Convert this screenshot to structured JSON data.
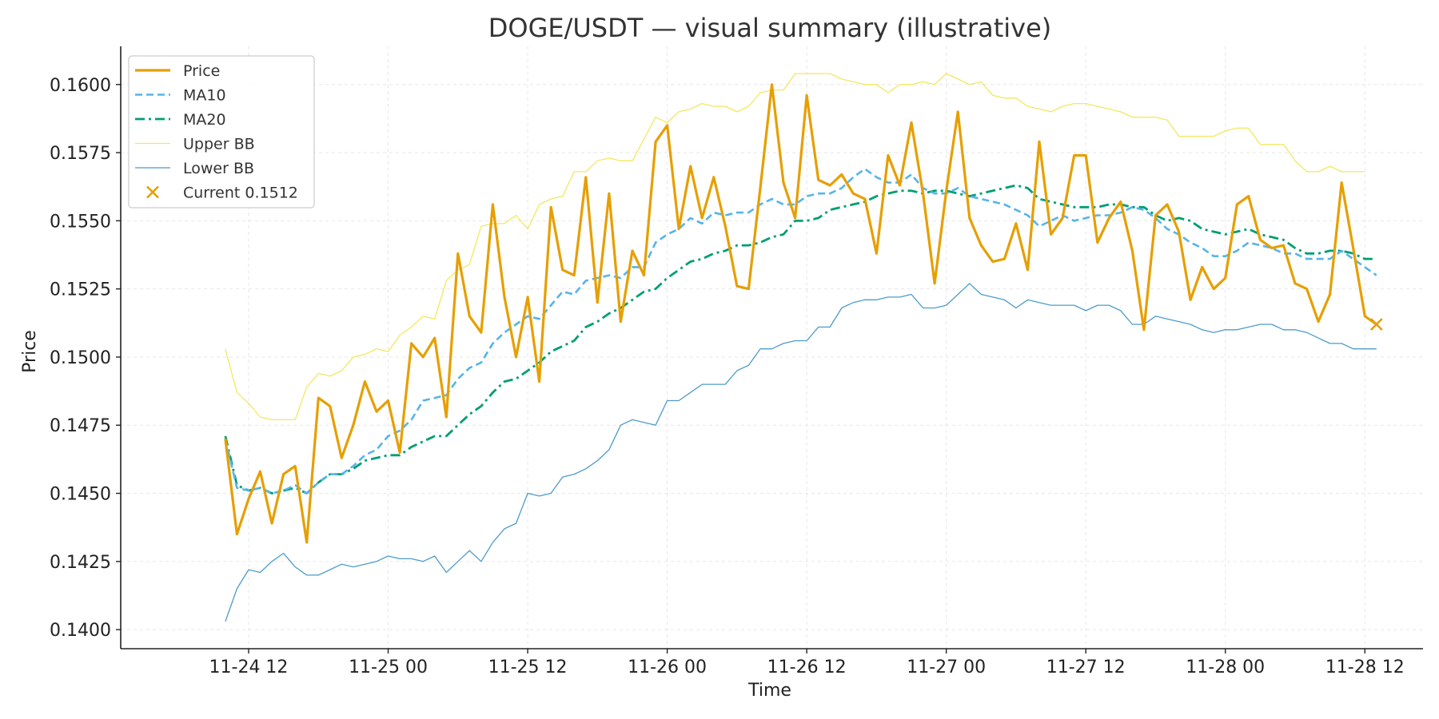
{
  "chart_data": {
    "type": "line",
    "title": "DOGE/USDT — visual summary (illustrative)",
    "xlabel": "Time",
    "ylabel": "Price",
    "xlim": [
      "2024-11-24T01:00",
      "2024-11-28T17:00"
    ],
    "ylim": [
      0.1393,
      0.1614
    ],
    "x_ticks": [
      {
        "label": "11-24 12",
        "value": "2024-11-24T12:00"
      },
      {
        "label": "11-25 00",
        "value": "2024-11-25T00:00"
      },
      {
        "label": "11-25 12",
        "value": "2024-11-25T12:00"
      },
      {
        "label": "11-26 00",
        "value": "2024-11-26T00:00"
      },
      {
        "label": "11-26 12",
        "value": "2024-11-26T12:00"
      },
      {
        "label": "11-27 00",
        "value": "2024-11-27T00:00"
      },
      {
        "label": "11-27 12",
        "value": "2024-11-27T12:00"
      },
      {
        "label": "11-28 00",
        "value": "2024-11-28T00:00"
      },
      {
        "label": "11-28 12",
        "value": "2024-11-28T12:00"
      }
    ],
    "y_ticks": [
      {
        "label": "0.1400",
        "value": 0.14
      },
      {
        "label": "0.1425",
        "value": 0.1425
      },
      {
        "label": "0.1450",
        "value": 0.145
      },
      {
        "label": "0.1475",
        "value": 0.1475
      },
      {
        "label": "0.1500",
        "value": 0.15
      },
      {
        "label": "0.1525",
        "value": 0.1525
      },
      {
        "label": "0.1550",
        "value": 0.155
      },
      {
        "label": "0.1575",
        "value": 0.1575
      },
      {
        "label": "0.1600",
        "value": 0.16
      }
    ],
    "grid": true,
    "legend_position": "top-left",
    "x_start": "2024-11-24T10:00",
    "x_step_hours": 1,
    "series": [
      {
        "name": "Price",
        "color": "#E69F00",
        "style": "solid",
        "values": [
          0.147,
          0.1435,
          0.1448,
          0.1458,
          0.1439,
          0.1457,
          0.146,
          0.1432,
          0.1485,
          0.1482,
          0.1463,
          0.1475,
          0.1491,
          0.148,
          0.1484,
          0.1465,
          0.1505,
          0.15,
          0.1507,
          0.1478,
          0.1538,
          0.1515,
          0.1509,
          0.1556,
          0.1522,
          0.15,
          0.1522,
          0.1491,
          0.1555,
          0.1532,
          0.153,
          0.1566,
          0.152,
          0.156,
          0.1513,
          0.1539,
          0.153,
          0.1579,
          0.1585,
          0.1547,
          0.157,
          0.1551,
          0.1566,
          0.1548,
          0.1526,
          0.1525,
          0.1562,
          0.16,
          0.1564,
          0.1551,
          0.1596,
          0.1565,
          0.1563,
          0.1567,
          0.156,
          0.1558,
          0.1538,
          0.1574,
          0.1563,
          0.1586,
          0.156,
          0.1527,
          0.1561,
          0.159,
          0.1551,
          0.1541,
          0.1535,
          0.1536,
          0.1549,
          0.1532,
          0.1579,
          0.1545,
          0.1551,
          0.1574,
          0.1574,
          0.1542,
          0.1551,
          0.1557,
          0.1539,
          0.151,
          0.1552,
          0.1556,
          0.1546,
          0.1521,
          0.1533,
          0.1525,
          0.1529,
          0.1556,
          0.1559,
          0.1543,
          0.154,
          0.1541,
          0.1527,
          0.1525,
          0.1513,
          0.1523,
          0.1564,
          0.154,
          0.1515,
          0.1512
        ]
      },
      {
        "name": "MA10",
        "color": "#56B4E9",
        "style": "dashed",
        "values": [
          0.147,
          0.1452,
          0.1451,
          0.1452,
          0.145,
          0.1451,
          0.1453,
          0.145,
          0.1454,
          0.1457,
          0.1457,
          0.146,
          0.1464,
          0.1466,
          0.1471,
          0.1473,
          0.1477,
          0.1484,
          0.1485,
          0.1486,
          0.1492,
          0.1496,
          0.1498,
          0.1505,
          0.1509,
          0.1512,
          0.1515,
          0.1514,
          0.1519,
          0.1524,
          0.1523,
          0.1528,
          0.1529,
          0.153,
          0.1529,
          0.1533,
          0.1533,
          0.1542,
          0.1545,
          0.1547,
          0.1551,
          0.1549,
          0.1553,
          0.1552,
          0.1553,
          0.1553,
          0.1556,
          0.1558,
          0.1556,
          0.1556,
          0.1559,
          0.156,
          0.156,
          0.1562,
          0.1566,
          0.1569,
          0.1566,
          0.1564,
          0.1564,
          0.1567,
          0.1562,
          0.156,
          0.156,
          0.1562,
          0.1559,
          0.1558,
          0.1557,
          0.1556,
          0.1554,
          0.1552,
          0.1548,
          0.155,
          0.1552,
          0.155,
          0.1551,
          0.1552,
          0.1552,
          0.1553,
          0.1555,
          0.1554,
          0.1551,
          0.1547,
          0.1545,
          0.1542,
          0.154,
          0.1537,
          0.1537,
          0.1539,
          0.1542,
          0.1541,
          0.154,
          0.1538,
          0.1538,
          0.1536,
          0.1536,
          0.1536,
          0.1539,
          0.1536,
          0.1533,
          0.153
        ]
      },
      {
        "name": "MA20",
        "color": "#009E73",
        "style": "dashdot",
        "values": [
          0.1471,
          0.1453,
          0.1451,
          0.1452,
          0.145,
          0.1451,
          0.1452,
          0.145,
          0.1454,
          0.1457,
          0.1457,
          0.1459,
          0.1462,
          0.1463,
          0.1464,
          0.1464,
          0.1467,
          0.1469,
          0.1471,
          0.1471,
          0.1475,
          0.1479,
          0.1482,
          0.1487,
          0.1491,
          0.1492,
          0.1495,
          0.1498,
          0.1502,
          0.1504,
          0.1506,
          0.1511,
          0.1513,
          0.1516,
          0.1518,
          0.1521,
          0.1524,
          0.1525,
          0.1529,
          0.1532,
          0.1535,
          0.1536,
          0.1538,
          0.1539,
          0.1541,
          0.1541,
          0.1542,
          0.1544,
          0.1545,
          0.155,
          0.155,
          0.1551,
          0.1554,
          0.1555,
          0.1556,
          0.1557,
          0.1559,
          0.156,
          0.1561,
          0.1561,
          0.156,
          0.1561,
          0.1561,
          0.156,
          0.1559,
          0.156,
          0.1561,
          0.1562,
          0.1563,
          0.1562,
          0.1558,
          0.1557,
          0.1556,
          0.1555,
          0.1555,
          0.1555,
          0.1556,
          0.1556,
          0.1555,
          0.1555,
          0.1552,
          0.155,
          0.1551,
          0.155,
          0.1547,
          0.1546,
          0.1545,
          0.1546,
          0.1547,
          0.1545,
          0.1544,
          0.1543,
          0.154,
          0.1538,
          0.1538,
          0.1539,
          0.1539,
          0.1538,
          0.1536,
          0.1536
        ]
      },
      {
        "name": "Upper BB",
        "color": "#F0E442",
        "style": "thin",
        "values": [
          0.1503,
          0.1487,
          0.1483,
          0.1478,
          0.1477,
          0.1477,
          0.1477,
          0.1489,
          0.1494,
          0.1493,
          0.1495,
          0.15,
          0.1501,
          0.1503,
          0.1502,
          0.1508,
          0.1511,
          0.1515,
          0.1514,
          0.1528,
          0.1532,
          0.1534,
          0.1548,
          0.1549,
          0.1549,
          0.1552,
          0.1547,
          0.1556,
          0.1558,
          0.1559,
          0.1568,
          0.1568,
          0.1572,
          0.1573,
          0.1572,
          0.1572,
          0.158,
          0.1588,
          0.1586,
          0.159,
          0.1591,
          0.1593,
          0.1592,
          0.1592,
          0.159,
          0.1592,
          0.1597,
          0.1598,
          0.1598,
          0.1604,
          0.1604,
          0.1604,
          0.1604,
          0.1602,
          0.1601,
          0.16,
          0.16,
          0.1597,
          0.16,
          0.16,
          0.1601,
          0.16,
          0.1604,
          0.1602,
          0.16,
          0.1601,
          0.1596,
          0.1595,
          0.1595,
          0.1592,
          0.1591,
          0.159,
          0.1592,
          0.1593,
          0.1593,
          0.1592,
          0.1591,
          0.159,
          0.1588,
          0.1588,
          0.1588,
          0.1587,
          0.1581,
          0.1581,
          0.1581,
          0.1581,
          0.1583,
          0.1584,
          0.1584,
          0.1578,
          0.1578,
          0.1578,
          0.1572,
          0.1568,
          0.1568,
          0.157,
          0.1568,
          0.1568,
          0.1568
        ]
      },
      {
        "name": "Lower BB",
        "color": "#2E8BC0",
        "style": "thin",
        "values": [
          0.1403,
          0.1415,
          0.1422,
          0.1421,
          0.1425,
          0.1428,
          0.1423,
          0.142,
          0.142,
          0.1422,
          0.1424,
          0.1423,
          0.1424,
          0.1425,
          0.1427,
          0.1426,
          0.1426,
          0.1425,
          0.1427,
          0.1421,
          0.1425,
          0.1429,
          0.1425,
          0.1432,
          0.1437,
          0.1439,
          0.145,
          0.1449,
          0.145,
          0.1456,
          0.1457,
          0.1459,
          0.1462,
          0.1466,
          0.1475,
          0.1477,
          0.1476,
          0.1475,
          0.1484,
          0.1484,
          0.1487,
          0.149,
          0.149,
          0.149,
          0.1495,
          0.1497,
          0.1503,
          0.1503,
          0.1505,
          0.1506,
          0.1506,
          0.1511,
          0.1511,
          0.1518,
          0.152,
          0.1521,
          0.1521,
          0.1522,
          0.1522,
          0.1523,
          0.1518,
          0.1518,
          0.1519,
          0.1523,
          0.1527,
          0.1523,
          0.1522,
          0.1521,
          0.1518,
          0.1521,
          0.152,
          0.1519,
          0.1519,
          0.1519,
          0.1517,
          0.1519,
          0.1519,
          0.1517,
          0.1512,
          0.1512,
          0.1515,
          0.1514,
          0.1513,
          0.1512,
          0.151,
          0.1509,
          0.151,
          0.151,
          0.1511,
          0.1512,
          0.1512,
          0.151,
          0.151,
          0.1509,
          0.1507,
          0.1505,
          0.1505,
          0.1503,
          0.1503,
          0.1503
        ]
      }
    ],
    "current_marker": {
      "label": "Current 0.1512",
      "value": 0.1512,
      "time": "2024-11-28T13:00",
      "color": "#E69F00",
      "marker": "x"
    }
  }
}
